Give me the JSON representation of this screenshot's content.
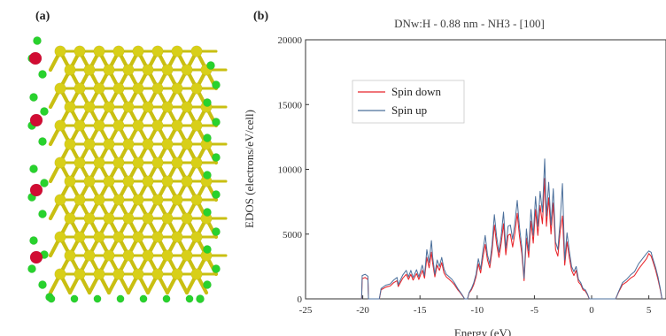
{
  "panel_a": {
    "label": "(a)",
    "colors": {
      "silicon": "#d8cf18",
      "hydrogen": "#28d22d",
      "nitrogen": "#d10c33",
      "bond": "#c9bf12"
    }
  },
  "panel_b": {
    "label": "(b)"
  },
  "chart_data": {
    "type": "line",
    "title": "DNw:H - 0.88 nm - NH3 - [100]",
    "xlabel": "Energy (eV)",
    "ylabel": "EDOS (electrons/eV/cell)",
    "xlim": [
      -25,
      6.5
    ],
    "ylim": [
      0,
      20000
    ],
    "xticks": [
      -25,
      -20,
      -15,
      -10,
      -5,
      0,
      5
    ],
    "yticks": [
      0,
      5000,
      10000,
      15000,
      20000
    ],
    "legend_position": "upper-left",
    "series": [
      {
        "name": "Spin down",
        "color": "#e8252b",
        "points": [
          [
            -20.1,
            0
          ],
          [
            -20.05,
            1550
          ],
          [
            -19.8,
            1650
          ],
          [
            -19.55,
            1500
          ],
          [
            -19.5,
            0
          ],
          [
            -18.55,
            0
          ],
          [
            -18.4,
            700
          ],
          [
            -18.0,
            900
          ],
          [
            -17.6,
            1000
          ],
          [
            -17.3,
            1250
          ],
          [
            -17.0,
            1400
          ],
          [
            -16.9,
            950
          ],
          [
            -16.5,
            1600
          ],
          [
            -16.2,
            1900
          ],
          [
            -16.0,
            1500
          ],
          [
            -15.8,
            1900
          ],
          [
            -15.6,
            1450
          ],
          [
            -15.3,
            1950
          ],
          [
            -15.1,
            1500
          ],
          [
            -14.8,
            2200
          ],
          [
            -14.6,
            1600
          ],
          [
            -14.4,
            3200
          ],
          [
            -14.2,
            2400
          ],
          [
            -14.0,
            3600
          ],
          [
            -13.9,
            2800
          ],
          [
            -13.7,
            1700
          ],
          [
            -13.5,
            2600
          ],
          [
            -13.3,
            2200
          ],
          [
            -13.1,
            2800
          ],
          [
            -12.9,
            2000
          ],
          [
            -12.7,
            1700
          ],
          [
            -12.5,
            1550
          ],
          [
            -12.2,
            1300
          ],
          [
            -12.0,
            1100
          ],
          [
            -11.7,
            700
          ],
          [
            -11.5,
            500
          ],
          [
            -11.3,
            250
          ],
          [
            -11.1,
            0
          ],
          [
            -10.85,
            0
          ],
          [
            -10.7,
            450
          ],
          [
            -10.5,
            700
          ],
          [
            -10.3,
            1100
          ],
          [
            -10.1,
            1700
          ],
          [
            -9.9,
            2700
          ],
          [
            -9.7,
            2000
          ],
          [
            -9.5,
            3200
          ],
          [
            -9.3,
            4200
          ],
          [
            -9.1,
            3000
          ],
          [
            -8.9,
            2400
          ],
          [
            -8.7,
            3700
          ],
          [
            -8.5,
            5700
          ],
          [
            -8.3,
            4200
          ],
          [
            -8.1,
            3200
          ],
          [
            -7.9,
            4300
          ],
          [
            -7.7,
            5800
          ],
          [
            -7.5,
            3400
          ],
          [
            -7.3,
            4900
          ],
          [
            -7.1,
            5000
          ],
          [
            -6.9,
            4000
          ],
          [
            -6.7,
            5100
          ],
          [
            -6.5,
            6600
          ],
          [
            -6.3,
            4800
          ],
          [
            -6.1,
            3500
          ],
          [
            -5.9,
            1400
          ],
          [
            -5.7,
            4700
          ],
          [
            -5.5,
            3200
          ],
          [
            -5.3,
            6000
          ],
          [
            -5.1,
            4300
          ],
          [
            -4.9,
            6900
          ],
          [
            -4.7,
            4900
          ],
          [
            -4.5,
            7200
          ],
          [
            -4.3,
            5800
          ],
          [
            -4.1,
            9300
          ],
          [
            -3.95,
            5600
          ],
          [
            -3.75,
            7800
          ],
          [
            -3.55,
            5000
          ],
          [
            -3.35,
            7400
          ],
          [
            -3.15,
            3800
          ],
          [
            -2.95,
            3300
          ],
          [
            -2.75,
            5200
          ],
          [
            -2.55,
            6400
          ],
          [
            -2.35,
            2600
          ],
          [
            -2.15,
            4400
          ],
          [
            -1.95,
            3200
          ],
          [
            -1.75,
            2200
          ],
          [
            -1.55,
            1800
          ],
          [
            -1.35,
            2200
          ],
          [
            -1.15,
            1300
          ],
          [
            -0.95,
            1100
          ],
          [
            -0.75,
            700
          ],
          [
            -0.55,
            600
          ],
          [
            -0.35,
            300
          ],
          [
            -0.2,
            0
          ],
          [
            2.1,
            0
          ],
          [
            2.35,
            500
          ],
          [
            2.7,
            1100
          ],
          [
            3.05,
            1300
          ],
          [
            3.4,
            1600
          ],
          [
            3.75,
            1800
          ],
          [
            4.1,
            2300
          ],
          [
            4.45,
            2700
          ],
          [
            4.8,
            3100
          ],
          [
            5.0,
            3500
          ],
          [
            5.2,
            3300
          ],
          [
            5.35,
            2900
          ],
          [
            5.6,
            2200
          ],
          [
            5.8,
            1500
          ],
          [
            6.0,
            700
          ],
          [
            6.15,
            0
          ]
        ]
      },
      {
        "name": "Spin up",
        "color": "#4b6f9b",
        "points": [
          [
            -20.1,
            0
          ],
          [
            -20.05,
            1800
          ],
          [
            -19.8,
            1900
          ],
          [
            -19.55,
            1750
          ],
          [
            -19.5,
            0
          ],
          [
            -18.55,
            0
          ],
          [
            -18.4,
            800
          ],
          [
            -18.0,
            1050
          ],
          [
            -17.6,
            1150
          ],
          [
            -17.3,
            1450
          ],
          [
            -17.0,
            1650
          ],
          [
            -16.9,
            1100
          ],
          [
            -16.5,
            1850
          ],
          [
            -16.2,
            2200
          ],
          [
            -16.0,
            1700
          ],
          [
            -15.8,
            2200
          ],
          [
            -15.6,
            1650
          ],
          [
            -15.3,
            2250
          ],
          [
            -15.1,
            1700
          ],
          [
            -14.8,
            2600
          ],
          [
            -14.6,
            1800
          ],
          [
            -14.4,
            3800
          ],
          [
            -14.2,
            2800
          ],
          [
            -14.0,
            4500
          ],
          [
            -13.9,
            3300
          ],
          [
            -13.7,
            1900
          ],
          [
            -13.5,
            3000
          ],
          [
            -13.3,
            2500
          ],
          [
            -13.1,
            3200
          ],
          [
            -12.9,
            2300
          ],
          [
            -12.7,
            1900
          ],
          [
            -12.5,
            1750
          ],
          [
            -12.2,
            1500
          ],
          [
            -12.0,
            1250
          ],
          [
            -11.7,
            800
          ],
          [
            -11.5,
            550
          ],
          [
            -11.3,
            300
          ],
          [
            -11.1,
            0
          ],
          [
            -10.85,
            0
          ],
          [
            -10.7,
            500
          ],
          [
            -10.5,
            800
          ],
          [
            -10.3,
            1250
          ],
          [
            -10.1,
            1900
          ],
          [
            -9.9,
            3100
          ],
          [
            -9.7,
            2300
          ],
          [
            -9.5,
            3700
          ],
          [
            -9.3,
            4900
          ],
          [
            -9.1,
            3400
          ],
          [
            -8.9,
            2700
          ],
          [
            -8.7,
            4200
          ],
          [
            -8.5,
            6500
          ],
          [
            -8.3,
            4800
          ],
          [
            -8.1,
            3600
          ],
          [
            -7.9,
            4900
          ],
          [
            -7.7,
            6700
          ],
          [
            -7.5,
            3900
          ],
          [
            -7.3,
            5600
          ],
          [
            -7.1,
            5700
          ],
          [
            -6.9,
            4600
          ],
          [
            -6.7,
            5900
          ],
          [
            -6.5,
            7600
          ],
          [
            -6.3,
            5500
          ],
          [
            -6.1,
            4000
          ],
          [
            -5.9,
            1600
          ],
          [
            -5.7,
            5400
          ],
          [
            -5.5,
            3700
          ],
          [
            -5.3,
            6900
          ],
          [
            -5.1,
            4900
          ],
          [
            -4.9,
            7900
          ],
          [
            -4.7,
            5600
          ],
          [
            -4.5,
            8300
          ],
          [
            -4.3,
            6700
          ],
          [
            -4.1,
            10800
          ],
          [
            -3.95,
            6400
          ],
          [
            -3.75,
            9000
          ],
          [
            -3.55,
            5700
          ],
          [
            -3.35,
            8500
          ],
          [
            -3.15,
            4400
          ],
          [
            -2.95,
            3800
          ],
          [
            -2.75,
            6000
          ],
          [
            -2.55,
            8900
          ],
          [
            -2.35,
            3000
          ],
          [
            -2.15,
            5100
          ],
          [
            -1.95,
            3700
          ],
          [
            -1.75,
            2500
          ],
          [
            -1.55,
            2100
          ],
          [
            -1.35,
            2500
          ],
          [
            -1.15,
            1500
          ],
          [
            -0.95,
            1250
          ],
          [
            -0.75,
            800
          ],
          [
            -0.55,
            700
          ],
          [
            -0.35,
            350
          ],
          [
            -0.2,
            0
          ],
          [
            2.1,
            0
          ],
          [
            2.35,
            550
          ],
          [
            2.7,
            1250
          ],
          [
            3.05,
            1500
          ],
          [
            3.4,
            1850
          ],
          [
            3.75,
            2100
          ],
          [
            4.1,
            2700
          ],
          [
            4.45,
            3100
          ],
          [
            4.8,
            3500
          ],
          [
            5.0,
            3700
          ],
          [
            5.2,
            3600
          ],
          [
            5.35,
            3100
          ],
          [
            5.6,
            2400
          ],
          [
            5.8,
            1700
          ],
          [
            6.0,
            800
          ],
          [
            6.15,
            0
          ]
        ]
      }
    ]
  }
}
